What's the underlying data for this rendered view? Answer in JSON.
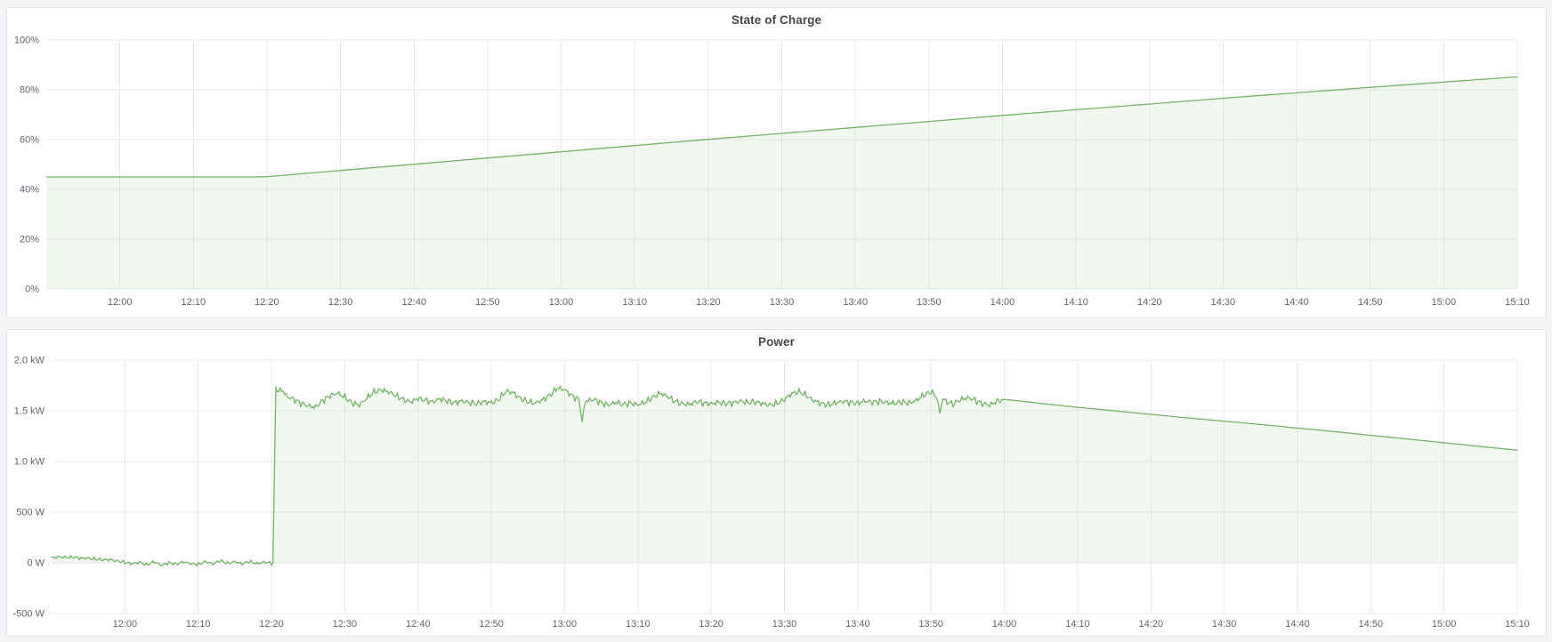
{
  "dashboard": {
    "background_color": "#f4f5f6",
    "panel_background": "#ffffff",
    "panel_border_color": "#e0e4e7",
    "series_line_color": "#74b366",
    "series_fill_color": "rgba(115,191,105,0.10)",
    "grid_color": "#e9ebec",
    "tick_text_color": "#5f646a",
    "title_text_color": "#43474d"
  },
  "chart_data": [
    {
      "type": "area",
      "title": "State of Charge",
      "xlabel": "",
      "ylabel": "",
      "x_unit": "minutes after 11:50",
      "x_range_minutes": [
        0,
        200
      ],
      "y_range": [
        0,
        100
      ],
      "baseline": 0,
      "grid": true,
      "legend": "none",
      "line_color": "#74b366",
      "fill_color": "rgba(115,191,105,0.10)",
      "x_ticks": [
        {
          "t": 10,
          "label": "12:00"
        },
        {
          "t": 20,
          "label": "12:10"
        },
        {
          "t": 30,
          "label": "12:20"
        },
        {
          "t": 40,
          "label": "12:30"
        },
        {
          "t": 50,
          "label": "12:40"
        },
        {
          "t": 60,
          "label": "12:50"
        },
        {
          "t": 70,
          "label": "13:00"
        },
        {
          "t": 80,
          "label": "13:10"
        },
        {
          "t": 90,
          "label": "13:20"
        },
        {
          "t": 100,
          "label": "13:30"
        },
        {
          "t": 110,
          "label": "13:40"
        },
        {
          "t": 120,
          "label": "13:50"
        },
        {
          "t": 130,
          "label": "14:00"
        },
        {
          "t": 140,
          "label": "14:10"
        },
        {
          "t": 150,
          "label": "14:20"
        },
        {
          "t": 160,
          "label": "14:30"
        },
        {
          "t": 170,
          "label": "14:40"
        },
        {
          "t": 180,
          "label": "14:50"
        },
        {
          "t": 190,
          "label": "15:00"
        },
        {
          "t": 200,
          "label": "15:10"
        }
      ],
      "y_ticks": [
        {
          "v": 0,
          "label": "0%"
        },
        {
          "v": 20,
          "label": "20%"
        },
        {
          "v": 40,
          "label": "40%"
        },
        {
          "v": 60,
          "label": "60%"
        },
        {
          "v": 80,
          "label": "80%"
        },
        {
          "v": 100,
          "label": "100%"
        }
      ],
      "points": [
        [
          0,
          45.0
        ],
        [
          10,
          45.0
        ],
        [
          20,
          45.0
        ],
        [
          28,
          45.0
        ],
        [
          30,
          45.1
        ],
        [
          40,
          47.6
        ],
        [
          50,
          50.1
        ],
        [
          60,
          52.6
        ],
        [
          70,
          55.1
        ],
        [
          80,
          57.6
        ],
        [
          90,
          60.1
        ],
        [
          100,
          62.5
        ],
        [
          110,
          64.9
        ],
        [
          120,
          67.3
        ],
        [
          130,
          69.7
        ],
        [
          140,
          72.0
        ],
        [
          150,
          74.3
        ],
        [
          160,
          76.6
        ],
        [
          170,
          78.8
        ],
        [
          180,
          81.0
        ],
        [
          190,
          83.1
        ],
        [
          200,
          85.2
        ]
      ],
      "noise_segments": []
    },
    {
      "type": "area",
      "title": "Power",
      "xlabel": "",
      "ylabel": "",
      "x_unit": "minutes after 11:50",
      "x_range_minutes": [
        0,
        200
      ],
      "y_range": [
        -500,
        2000
      ],
      "baseline": 0,
      "grid": true,
      "legend": "none",
      "line_color": "#74b366",
      "fill_color": "rgba(115,191,105,0.10)",
      "x_ticks": [
        {
          "t": 10,
          "label": "12:00"
        },
        {
          "t": 20,
          "label": "12:10"
        },
        {
          "t": 30,
          "label": "12:20"
        },
        {
          "t": 40,
          "label": "12:30"
        },
        {
          "t": 50,
          "label": "12:40"
        },
        {
          "t": 60,
          "label": "12:50"
        },
        {
          "t": 70,
          "label": "13:00"
        },
        {
          "t": 80,
          "label": "13:10"
        },
        {
          "t": 90,
          "label": "13:20"
        },
        {
          "t": 100,
          "label": "13:30"
        },
        {
          "t": 110,
          "label": "13:40"
        },
        {
          "t": 120,
          "label": "13:50"
        },
        {
          "t": 130,
          "label": "14:00"
        },
        {
          "t": 140,
          "label": "14:10"
        },
        {
          "t": 150,
          "label": "14:20"
        },
        {
          "t": 160,
          "label": "14:30"
        },
        {
          "t": 170,
          "label": "14:40"
        },
        {
          "t": 180,
          "label": "14:50"
        },
        {
          "t": 190,
          "label": "15:00"
        },
        {
          "t": 200,
          "label": "15:10"
        }
      ],
      "y_ticks": [
        {
          "v": -500,
          "label": "-500 W"
        },
        {
          "v": 0,
          "label": "0 W"
        },
        {
          "v": 500,
          "label": "500 W"
        },
        {
          "v": 1000,
          "label": "1.0 kW"
        },
        {
          "v": 1500,
          "label": "1.5 kW"
        },
        {
          "v": 2000,
          "label": "2.0 kW"
        }
      ],
      "points": [
        [
          0,
          45
        ],
        [
          1,
          55
        ],
        [
          2,
          48
        ],
        [
          3,
          52
        ],
        [
          4,
          40
        ],
        [
          5,
          42
        ],
        [
          6,
          34
        ],
        [
          7,
          28
        ],
        [
          8,
          30
        ],
        [
          9,
          18
        ],
        [
          10,
          8
        ],
        [
          11,
          -6
        ],
        [
          12,
          10
        ],
        [
          13,
          -14
        ],
        [
          14,
          16
        ],
        [
          15,
          -18
        ],
        [
          16,
          6
        ],
        [
          17,
          -10
        ],
        [
          18,
          12
        ],
        [
          19,
          -8
        ],
        [
          20,
          -16
        ],
        [
          21,
          10
        ],
        [
          22,
          -12
        ],
        [
          23,
          18
        ],
        [
          24,
          -10
        ],
        [
          25,
          6
        ],
        [
          26,
          -16
        ],
        [
          27,
          8
        ],
        [
          28,
          -12
        ],
        [
          29,
          6
        ],
        [
          30,
          -4
        ],
        [
          30.3,
          0
        ],
        [
          30.5,
          1745
        ],
        [
          31,
          1690
        ],
        [
          31.5,
          1712
        ],
        [
          32,
          1650
        ],
        [
          33,
          1620
        ],
        [
          34,
          1585
        ],
        [
          35,
          1558
        ],
        [
          36,
          1545
        ],
        [
          37,
          1610
        ],
        [
          38,
          1660
        ],
        [
          39,
          1682
        ],
        [
          40,
          1640
        ],
        [
          41,
          1580
        ],
        [
          42,
          1555
        ],
        [
          43,
          1622
        ],
        [
          44,
          1680
        ],
        [
          45,
          1700
        ],
        [
          46,
          1675
        ],
        [
          47,
          1640
        ],
        [
          48,
          1600
        ],
        [
          49,
          1580
        ],
        [
          50,
          1615
        ],
        [
          51,
          1600
        ],
        [
          52,
          1585
        ],
        [
          53,
          1620
        ],
        [
          54,
          1600
        ],
        [
          55,
          1585
        ],
        [
          56,
          1605
        ],
        [
          57,
          1590
        ],
        [
          58,
          1580
        ],
        [
          59,
          1600
        ],
        [
          60,
          1590
        ],
        [
          61,
          1615
        ],
        [
          62,
          1700
        ],
        [
          63,
          1680
        ],
        [
          64,
          1620
        ],
        [
          65,
          1585
        ],
        [
          66,
          1570
        ],
        [
          67,
          1600
        ],
        [
          68,
          1645
        ],
        [
          69,
          1715
        ],
        [
          70,
          1700
        ],
        [
          71,
          1640
        ],
        [
          72,
          1600
        ],
        [
          72.4,
          1380
        ],
        [
          72.8,
          1590
        ],
        [
          74,
          1610
        ],
        [
          75,
          1580
        ],
        [
          76,
          1560
        ],
        [
          77,
          1590
        ],
        [
          78,
          1570
        ],
        [
          79,
          1585
        ],
        [
          80,
          1570
        ],
        [
          81,
          1595
        ],
        [
          82,
          1640
        ],
        [
          83,
          1680
        ],
        [
          84,
          1650
        ],
        [
          85,
          1600
        ],
        [
          86,
          1570
        ],
        [
          87,
          1560
        ],
        [
          88,
          1585
        ],
        [
          89,
          1570
        ],
        [
          90,
          1560
        ],
        [
          91,
          1575
        ],
        [
          92,
          1562
        ],
        [
          93,
          1570
        ],
        [
          94,
          1590
        ],
        [
          95,
          1575
        ],
        [
          96,
          1585
        ],
        [
          97,
          1570
        ],
        [
          98,
          1560
        ],
        [
          99,
          1580
        ],
        [
          100,
          1620
        ],
        [
          101,
          1680
        ],
        [
          102,
          1700
        ],
        [
          103,
          1660
        ],
        [
          104,
          1610
        ],
        [
          105,
          1580
        ],
        [
          106,
          1565
        ],
        [
          107,
          1580
        ],
        [
          108,
          1595
        ],
        [
          109,
          1580
        ],
        [
          110,
          1570
        ],
        [
          111,
          1590
        ],
        [
          112,
          1575
        ],
        [
          113,
          1585
        ],
        [
          114,
          1570
        ],
        [
          115,
          1565
        ],
        [
          116,
          1580
        ],
        [
          117,
          1570
        ],
        [
          118,
          1600
        ],
        [
          119,
          1655
        ],
        [
          120,
          1690
        ],
        [
          120.8,
          1640
        ],
        [
          121.2,
          1480
        ],
        [
          121.6,
          1630
        ],
        [
          122,
          1600
        ],
        [
          123,
          1575
        ],
        [
          124,
          1620
        ],
        [
          125,
          1640
        ],
        [
          126,
          1615
        ],
        [
          127,
          1580
        ],
        [
          128,
          1560
        ],
        [
          129,
          1600
        ],
        [
          130,
          1612
        ],
        [
          132,
          1598
        ],
        [
          135,
          1573
        ],
        [
          140,
          1535
        ],
        [
          145,
          1500
        ],
        [
          150,
          1465
        ],
        [
          155,
          1430
        ],
        [
          160,
          1398
        ],
        [
          165,
          1365
        ],
        [
          170,
          1330
        ],
        [
          175,
          1295
        ],
        [
          180,
          1258
        ],
        [
          185,
          1222
        ],
        [
          190,
          1185
        ],
        [
          195,
          1148
        ],
        [
          200,
          1112
        ]
      ],
      "noise_segments": [
        {
          "t0": 0,
          "t1": 30.2,
          "amp": 26
        },
        {
          "t0": 30.6,
          "t1": 129.5,
          "amp": 50
        }
      ]
    }
  ]
}
